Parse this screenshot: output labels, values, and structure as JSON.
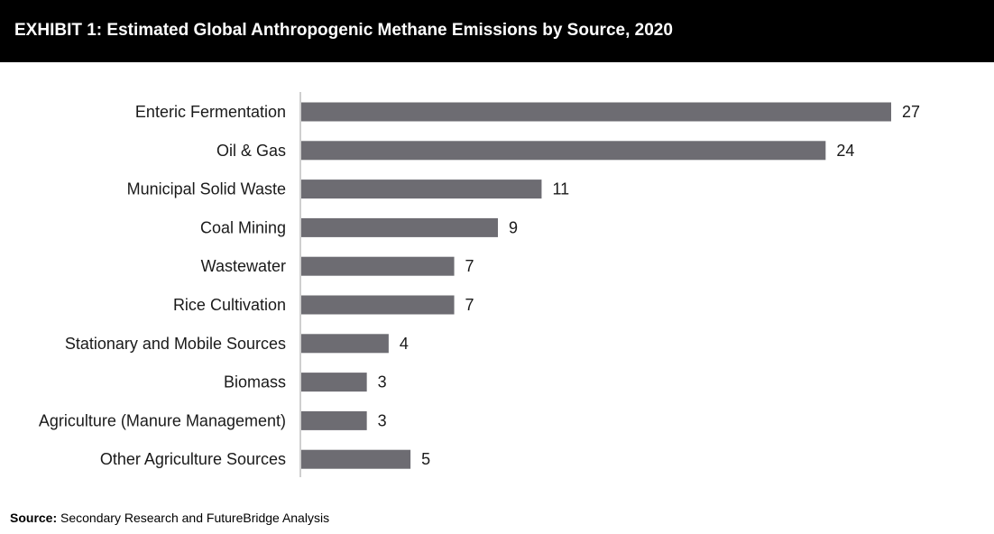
{
  "header": {
    "title": "EXHIBIT 1: Estimated Global Anthropogenic Methane Emissions by Source, 2020"
  },
  "chart_data": {
    "type": "bar",
    "orientation": "horizontal",
    "title": "EXHIBIT 1: Estimated Global Anthropogenic Methane Emissions by Source, 2020",
    "categories": [
      "Enteric Fermentation",
      "Oil & Gas",
      "Municipal Solid Waste",
      "Coal Mining",
      "Wastewater",
      "Rice Cultivation",
      "Stationary and Mobile Sources",
      "Biomass",
      "Agriculture (Manure Management)",
      "Other Agriculture Sources"
    ],
    "values": [
      27,
      24,
      11,
      9,
      7,
      7,
      4,
      3,
      3,
      5
    ],
    "xlim": [
      0,
      27
    ],
    "bar_color": "#6d6c72",
    "axis_color": "#bfbfbf",
    "grid": false,
    "legend": "none",
    "data_labels": true
  },
  "footer": {
    "source_label": "Source:",
    "source_text": " Secondary Research and FutureBridge Analysis"
  }
}
